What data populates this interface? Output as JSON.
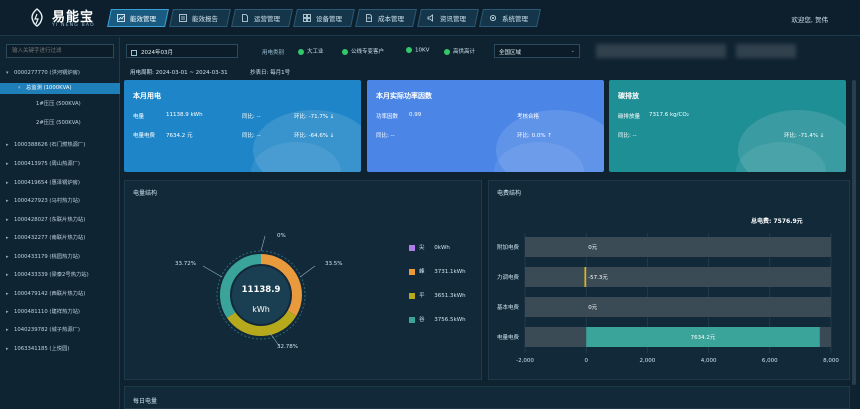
{
  "app": {
    "brand": "易能宝",
    "brand_sub": "YI NENG BAO",
    "welcome": "欢迎您, 贺伟"
  },
  "nav": [
    {
      "label": "能效管理",
      "icon": "chart-icon",
      "active": true
    },
    {
      "label": "能效报告",
      "icon": "report-icon",
      "active": false
    },
    {
      "label": "运营管理",
      "icon": "document-icon",
      "active": false
    },
    {
      "label": "设备管理",
      "icon": "grid-icon",
      "active": false
    },
    {
      "label": "成本管理",
      "icon": "document-icon",
      "active": false
    },
    {
      "label": "资讯管理",
      "icon": "speaker-icon",
      "active": false
    },
    {
      "label": "系统管理",
      "icon": "gear-icon",
      "active": false
    }
  ],
  "sidebar": {
    "search_placeholder": "输入关键字进行过滤",
    "items": [
      {
        "label": "0000277770 (洪河锅炉房)",
        "expanded": true
      },
      {
        "label": "总监测 (1000KVA)",
        "expanded": true,
        "selected": true
      },
      {
        "label": "1#压压 (500KVA)"
      },
      {
        "label": "2#压压 (500KVA)"
      },
      {
        "label": "1000388626 (石门燃热源厂)"
      },
      {
        "label": "1000413975 (周山热源厂)"
      },
      {
        "label": "1000419654 (惠泽锅炉房)"
      },
      {
        "label": "1000427923 (马村热力站)"
      },
      {
        "label": "1000428027 (东联片热力站)"
      },
      {
        "label": "1000432277 (南联片热力站)"
      },
      {
        "label": "1000433179 (桃园热力站)"
      },
      {
        "label": "1000433339 (梁泰2号热力站)"
      },
      {
        "label": "1000479142 (西联片热力站)"
      },
      {
        "label": "1000481110 (建祥热力站)"
      },
      {
        "label": "1040239782 (城子热源厂)"
      },
      {
        "label": "1063341185 (上悦园)"
      }
    ]
  },
  "filter": {
    "date": "2024年03月",
    "category_label": "用电类别",
    "options": [
      "大工业",
      "公线专变客户",
      "10KV",
      "高供高计"
    ],
    "region": "全国区域"
  },
  "period": {
    "label": "用电周期: 2024-03-01 ~ 2024-03-31",
    "copy_date": "抄表日: 每月1号"
  },
  "cards": {
    "power": {
      "title": "本月用电",
      "usage_label": "电量",
      "usage_value": "11138.9 kWh",
      "usage_yoy": "同比: --",
      "usage_mom": "环比: -71.7% ↓",
      "fee_label": "电量电费",
      "fee_value": "7634.2 元",
      "fee_yoy": "同比: --",
      "fee_mom": "环比: -64.6% ↓",
      "color": "#1e86c8"
    },
    "factor": {
      "title": "本月实际功率因数",
      "factor_label": "功率因数",
      "factor_value": "0.99",
      "check_label": "考核合格",
      "factor_yoy": "同比: --",
      "factor_mom": "环比: 0.0% ↑",
      "color": "#4b86e6"
    },
    "carbon": {
      "title": "碳排放",
      "label": "碳排放量",
      "value": "7317.6 kg/CO₂",
      "yoy": "同比: --",
      "mom": "环比: -71.4% ↓",
      "color": "#1f8f96"
    }
  },
  "power_structure": {
    "title": "电量结构",
    "center_value": "11138.9",
    "center_unit": "kWh",
    "pct_top": "0%",
    "pct_right": "33.5%",
    "pct_bottom": "32.78%",
    "pct_left": "33.72%",
    "legend": [
      {
        "name": "尖",
        "value": "0kWh",
        "color": "#b07ce6"
      },
      {
        "name": "峰",
        "value": "3731.1kWh",
        "color": "#e99a3c"
      },
      {
        "name": "平",
        "value": "3651.3kWh",
        "color": "#b6a91c"
      },
      {
        "name": "谷",
        "value": "3756.5kWh",
        "color": "#3aa39a"
      }
    ]
  },
  "fee_structure": {
    "title": "电费结构",
    "total": "总电费: 7576.9元",
    "rows": [
      {
        "label": "附加电费",
        "value": 0,
        "text": "0元"
      },
      {
        "label": "力调电费",
        "value": -57.3,
        "text": "-57.3元"
      },
      {
        "label": "基本电费",
        "value": 0,
        "text": "0元"
      },
      {
        "label": "电量电费",
        "value": 7634.2,
        "text": "7634.2元"
      }
    ],
    "ticks": [
      "-2,000",
      "0",
      "2,000",
      "4,000",
      "6,000",
      "8,000"
    ]
  },
  "daily": {
    "title": "每日电量"
  }
}
